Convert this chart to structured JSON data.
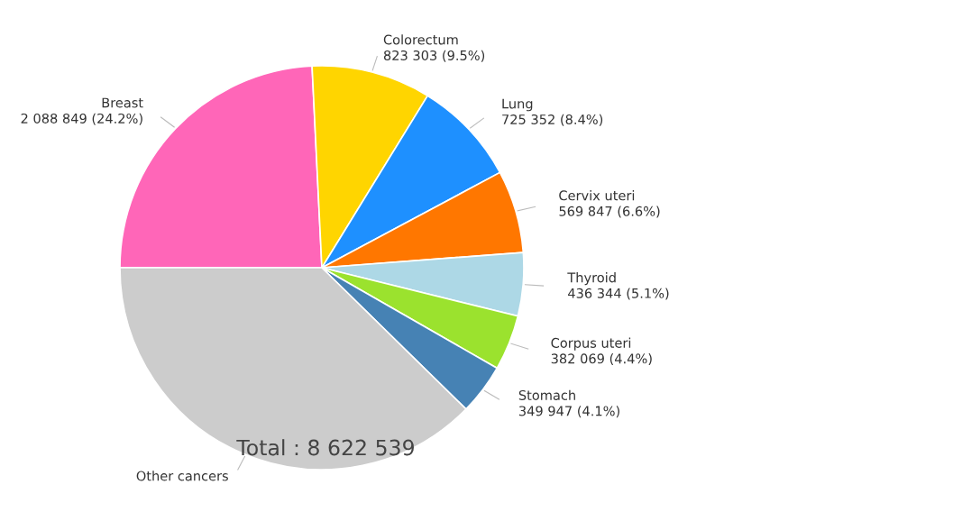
{
  "chart_data": {
    "type": "pie",
    "categories": [
      "Breast",
      "Colorectum",
      "Lung",
      "Cervix uteri",
      "Thyroid",
      "Corpus uteri",
      "Stomach",
      "Other cancers"
    ],
    "values": [
      2088849,
      823303,
      725352,
      569847,
      436344,
      382069,
      349947,
      3246828
    ],
    "value_labels": [
      "2 088 849 (24.2%)",
      "823 303 (9.5%)",
      "725 352 (8.4%)",
      "569 847 (6.6%)",
      "436 344 (5.1%)",
      "382 069 (4.4%)",
      "349 947 (4.1%)",
      null
    ],
    "colors": [
      "#ff66b8",
      "#ffd500",
      "#1e90ff",
      "#ff7700",
      "#add8e6",
      "#9be22e",
      "#4682b4",
      "#cccccc"
    ],
    "annotations": [
      "Total : 8 622 539"
    ]
  }
}
